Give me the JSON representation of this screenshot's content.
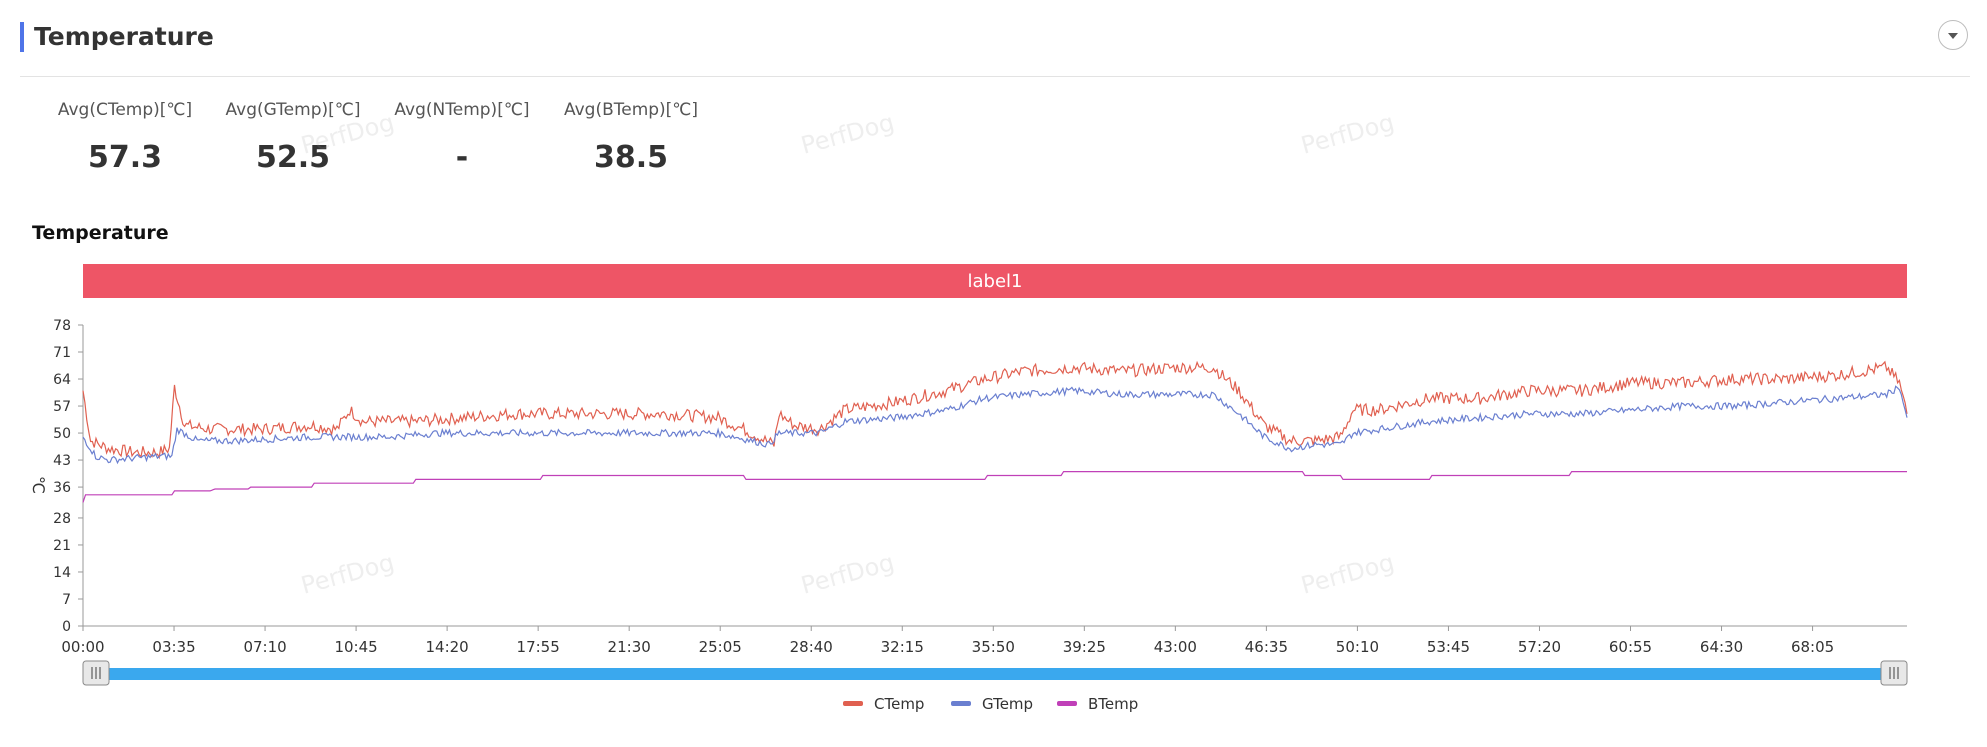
{
  "header": {
    "title": "Temperature"
  },
  "stats": [
    {
      "label": "Avg(CTemp)[℃]",
      "value": "57.3"
    },
    {
      "label": "Avg(GTemp)[℃]",
      "value": "52.5"
    },
    {
      "label": "Avg(NTemp)[℃]",
      "value": "-"
    },
    {
      "label": "Avg(BTemp)[℃]",
      "value": "38.5"
    }
  ],
  "watermark_text": "PerfDog",
  "chart_data": {
    "type": "line",
    "title": "Temperature",
    "ylabel": "℃",
    "xlabel": "",
    "label_band": {
      "text": "label1",
      "color": "#ee5566"
    },
    "yticks": [
      0,
      7,
      14,
      21,
      28,
      36,
      43,
      50,
      57,
      64,
      71,
      78
    ],
    "ylim": [
      0,
      78
    ],
    "x_ticks": [
      "00:00",
      "03:35",
      "07:10",
      "10:45",
      "14:20",
      "17:55",
      "21:30",
      "25:05",
      "28:40",
      "32:15",
      "35:50",
      "39:25",
      "43:00",
      "46:35",
      "50:10",
      "53:45",
      "57:20",
      "60:55",
      "64:30",
      "68:05"
    ],
    "x_tick_interval_min": 3.5833,
    "x_max_min": 71.8,
    "grid": false,
    "legend_position": "bottom-center",
    "series": [
      {
        "name": "CTemp",
        "color": "#e06050",
        "points": [
          [
            0,
            61
          ],
          [
            0.3,
            48
          ],
          [
            1,
            46
          ],
          [
            2,
            45
          ],
          [
            3,
            45
          ],
          [
            3.4,
            46
          ],
          [
            3.6,
            62
          ],
          [
            4,
            52
          ],
          [
            5,
            51
          ],
          [
            7,
            51
          ],
          [
            9,
            52
          ],
          [
            10,
            51
          ],
          [
            10.5,
            56
          ],
          [
            11,
            53
          ],
          [
            13,
            53
          ],
          [
            15,
            54
          ],
          [
            17,
            55
          ],
          [
            19,
            55
          ],
          [
            21,
            55
          ],
          [
            23,
            55
          ],
          [
            25,
            54
          ],
          [
            26,
            51
          ],
          [
            27.2,
            47
          ],
          [
            27.4,
            55
          ],
          [
            28,
            52
          ],
          [
            29,
            51
          ],
          [
            30,
            56
          ],
          [
            32,
            58
          ],
          [
            34,
            61
          ],
          [
            35.5,
            64
          ],
          [
            37,
            66
          ],
          [
            39,
            67
          ],
          [
            41,
            66
          ],
          [
            43,
            67
          ],
          [
            44.5,
            67
          ],
          [
            45.5,
            61
          ],
          [
            46.5,
            52
          ],
          [
            47.5,
            48
          ],
          [
            48.5,
            48
          ],
          [
            49.5,
            49
          ],
          [
            50,
            56
          ],
          [
            51,
            56
          ],
          [
            53,
            59
          ],
          [
            55,
            59
          ],
          [
            57,
            61
          ],
          [
            59,
            61
          ],
          [
            61,
            63
          ],
          [
            63,
            63
          ],
          [
            65,
            64
          ],
          [
            67,
            64
          ],
          [
            69,
            65
          ],
          [
            71,
            67
          ],
          [
            71.5,
            63
          ],
          [
            71.8,
            55
          ]
        ]
      },
      {
        "name": "GTemp",
        "color": "#6a7fd0",
        "points": [
          [
            0,
            49
          ],
          [
            0.5,
            44
          ],
          [
            1,
            43
          ],
          [
            3,
            44
          ],
          [
            3.5,
            44
          ],
          [
            3.7,
            51
          ],
          [
            4.5,
            48
          ],
          [
            6,
            48
          ],
          [
            9,
            49
          ],
          [
            12,
            49
          ],
          [
            14,
            50
          ],
          [
            17,
            50
          ],
          [
            20,
            50
          ],
          [
            23,
            50
          ],
          [
            25,
            50
          ],
          [
            27,
            47
          ],
          [
            27.4,
            50
          ],
          [
            28,
            50
          ],
          [
            29,
            50
          ],
          [
            30,
            53
          ],
          [
            32,
            54
          ],
          [
            34,
            56
          ],
          [
            35.5,
            59
          ],
          [
            37,
            60
          ],
          [
            39,
            61
          ],
          [
            41,
            60
          ],
          [
            43,
            60
          ],
          [
            44.5,
            60
          ],
          [
            45.5,
            55
          ],
          [
            46.5,
            49
          ],
          [
            47.5,
            46
          ],
          [
            48.5,
            47
          ],
          [
            49.5,
            47
          ],
          [
            50,
            50
          ],
          [
            51,
            51
          ],
          [
            53,
            53
          ],
          [
            55,
            54
          ],
          [
            57,
            55
          ],
          [
            59,
            55
          ],
          [
            61,
            56
          ],
          [
            63,
            57
          ],
          [
            65,
            57
          ],
          [
            67,
            58
          ],
          [
            69,
            59
          ],
          [
            71,
            60
          ],
          [
            71.5,
            62
          ],
          [
            71.8,
            54
          ]
        ]
      },
      {
        "name": "BTemp",
        "color": "#c040b8",
        "points": [
          [
            0,
            32
          ],
          [
            0.1,
            34
          ],
          [
            3.5,
            34
          ],
          [
            3.6,
            35
          ],
          [
            5,
            35
          ],
          [
            5.2,
            35.5
          ],
          [
            6.5,
            35.5
          ],
          [
            6.6,
            36
          ],
          [
            9,
            36
          ],
          [
            9.1,
            37
          ],
          [
            13,
            37
          ],
          [
            13.1,
            38
          ],
          [
            18,
            38
          ],
          [
            18.1,
            39
          ],
          [
            26,
            39
          ],
          [
            26.1,
            38
          ],
          [
            35.5,
            38
          ],
          [
            35.6,
            39
          ],
          [
            38.5,
            39
          ],
          [
            38.6,
            40
          ],
          [
            48,
            40
          ],
          [
            48.1,
            39
          ],
          [
            49.5,
            39
          ],
          [
            49.6,
            38
          ],
          [
            53,
            38
          ],
          [
            53.1,
            39
          ],
          [
            58.5,
            39
          ],
          [
            58.6,
            40
          ],
          [
            71.8,
            40
          ]
        ]
      }
    ]
  }
}
